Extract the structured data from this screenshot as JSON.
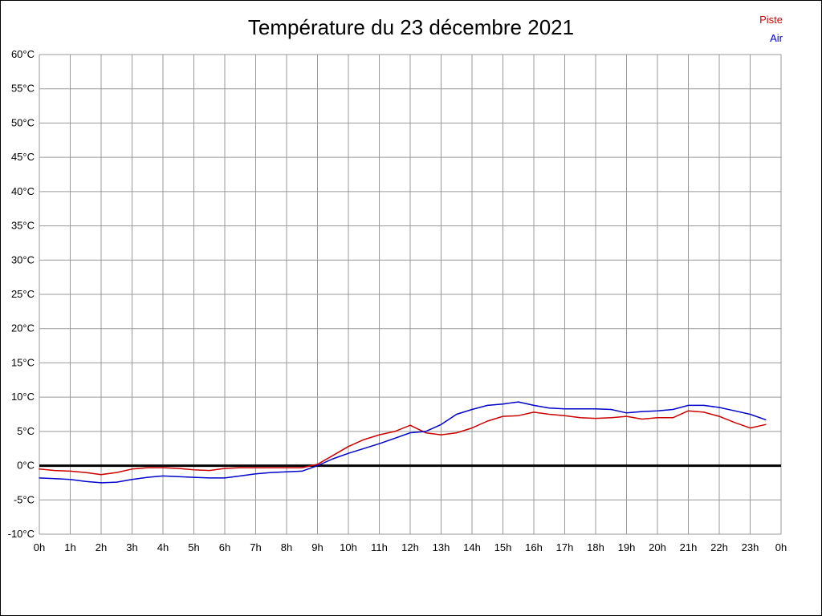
{
  "header": {
    "title": "Température du 23 décembre 2021"
  },
  "legend": [
    {
      "label": "Piste",
      "color": "#cc0000"
    },
    {
      "label": "Air",
      "color": "#0000cc"
    }
  ],
  "colors": {
    "grid": "#999999",
    "zero_line": "#000000",
    "background": "#ffffff",
    "text": "#000000"
  },
  "chart_data": {
    "type": "line",
    "title": "Température du 23 décembre 2021",
    "xlabel": "",
    "ylabel": "",
    "xlim": [
      0,
      24
    ],
    "ylim": [
      -10,
      60
    ],
    "grid": true,
    "zero_line": true,
    "legend_position": "top-right",
    "x_tick_positions": [
      0,
      1,
      2,
      3,
      4,
      5,
      6,
      7,
      8,
      9,
      10,
      11,
      12,
      13,
      14,
      15,
      16,
      17,
      18,
      19,
      20,
      21,
      22,
      23,
      24
    ],
    "x_tick_labels": [
      "0h",
      "1h",
      "2h",
      "3h",
      "4h",
      "5h",
      "6h",
      "7h",
      "8h",
      "9h",
      "10h",
      "11h",
      "12h",
      "13h",
      "14h",
      "15h",
      "16h",
      "17h",
      "18h",
      "19h",
      "20h",
      "21h",
      "22h",
      "23h",
      "0h"
    ],
    "y_tick_values": [
      60,
      55,
      50,
      45,
      40,
      35,
      30,
      25,
      20,
      15,
      10,
      5,
      0,
      -5,
      -10
    ],
    "y_tick_labels": [
      "60°C",
      "55°C",
      "50°C",
      "45°C",
      "40°C",
      "35°C",
      "30°C",
      "25°C",
      "20°C",
      "15°C",
      "10°C",
      "5°C",
      "0°C",
      "-5°C",
      "-10°C"
    ],
    "x": [
      0,
      0.5,
      1,
      1.5,
      2,
      2.5,
      3,
      3.5,
      4,
      4.5,
      5,
      5.5,
      6,
      6.5,
      7,
      7.5,
      8,
      8.5,
      9,
      9.5,
      10,
      10.5,
      11,
      11.5,
      12,
      12.5,
      13,
      13.5,
      14,
      14.5,
      15,
      15.5,
      16,
      16.5,
      17,
      17.5,
      18,
      18.5,
      19,
      19.5,
      20,
      20.5,
      21,
      21.5,
      22,
      22.5,
      23,
      23.5
    ],
    "series": [
      {
        "name": "Piste",
        "color": "#cc0000",
        "values": [
          -0.5,
          -0.7,
          -0.8,
          -1.0,
          -1.3,
          -1.0,
          -0.5,
          -0.3,
          -0.3,
          -0.4,
          -0.6,
          -0.7,
          -0.4,
          -0.3,
          -0.3,
          -0.3,
          -0.3,
          -0.3,
          0.2,
          1.5,
          2.8,
          3.8,
          4.5,
          5.0,
          5.9,
          4.8,
          4.5,
          4.8,
          5.5,
          6.5,
          7.2,
          7.3,
          7.8,
          7.5,
          7.3,
          7.0,
          6.9,
          7.0,
          7.2,
          6.8,
          7.0,
          7.0,
          8.0,
          7.8,
          7.2,
          6.3,
          5.5,
          6.0
        ]
      },
      {
        "name": "Air",
        "color": "#0000cc",
        "values": [
          -1.8,
          -1.9,
          -2.0,
          -2.3,
          -2.5,
          -2.4,
          -2.0,
          -1.7,
          -1.5,
          -1.6,
          -1.7,
          -1.8,
          -1.8,
          -1.5,
          -1.2,
          -1.0,
          -0.9,
          -0.8,
          0.0,
          1.0,
          1.8,
          2.5,
          3.2,
          4.0,
          4.8,
          5.0,
          6.0,
          7.5,
          8.2,
          8.8,
          9.0,
          9.3,
          8.8,
          8.4,
          8.3,
          8.3,
          8.3,
          8.2,
          7.7,
          7.9,
          8.0,
          8.2,
          8.8,
          8.8,
          8.5,
          8.0,
          7.5,
          6.7
        ]
      }
    ]
  }
}
